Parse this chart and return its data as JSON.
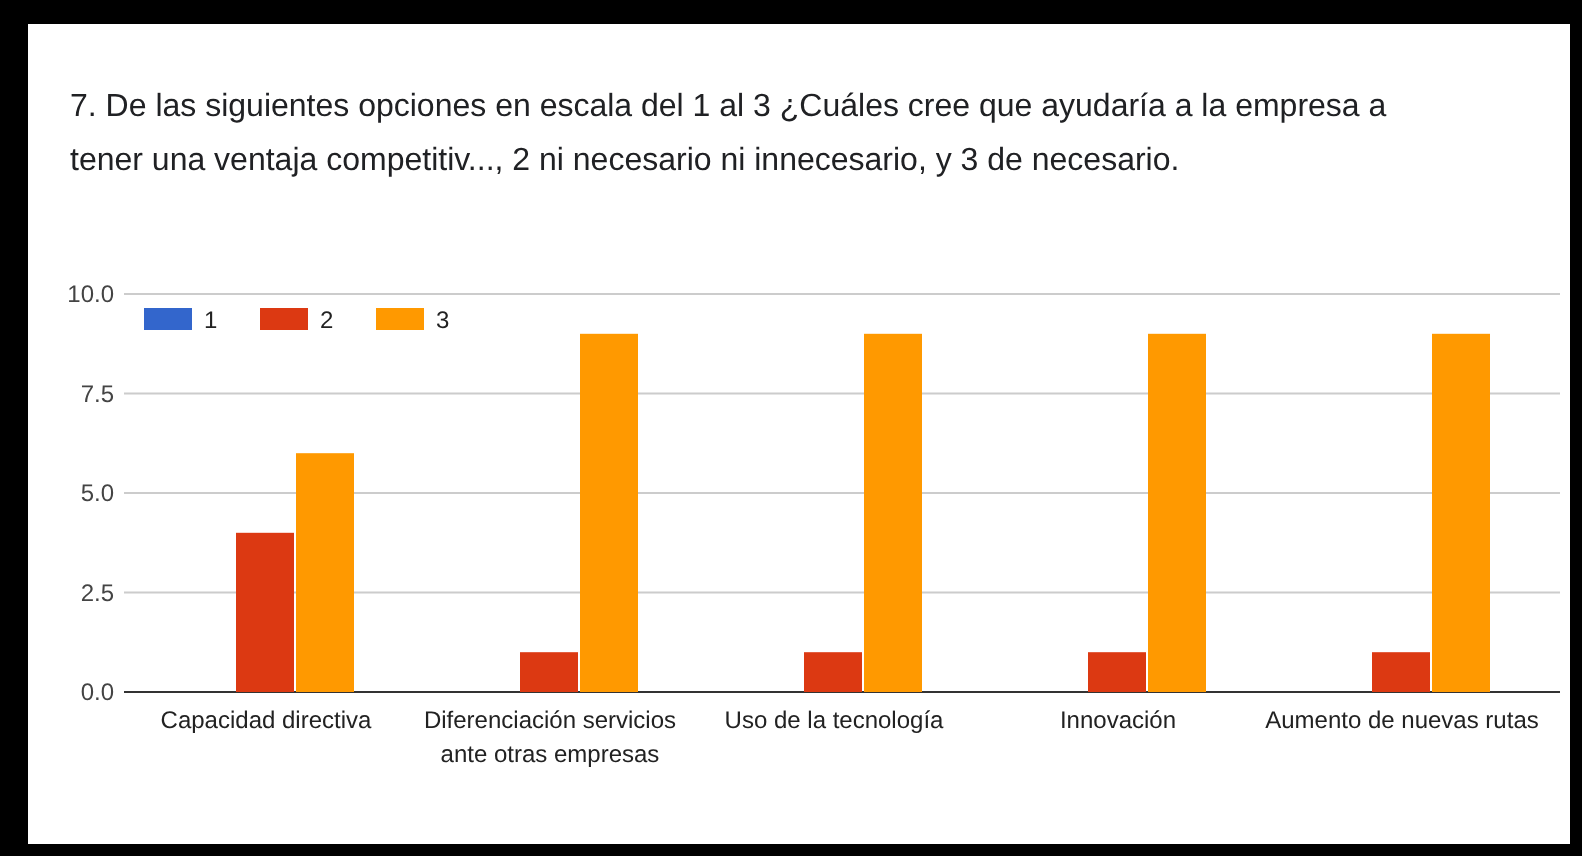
{
  "chart_data": {
    "type": "bar",
    "title": "7. De las siguientes opciones en escala del 1 al 3 ¿Cuáles cree que ayudaría a la empresa a tener una ventaja competitiv..., 2 ni necesario ni innecesario, y 3 de necesario.",
    "categories": [
      "Capacidad directiva",
      "Diferenciación servicios ante otras empresas",
      "Uso de la tecnología",
      "Innovación",
      "Aumento de nuevas rutas"
    ],
    "series": [
      {
        "name": "1",
        "color": "#3366cc",
        "values": [
          0,
          0,
          0,
          0,
          0
        ]
      },
      {
        "name": "2",
        "color": "#dc3912",
        "values": [
          4,
          1,
          1,
          1,
          1
        ]
      },
      {
        "name": "3",
        "color": "#ff9900",
        "values": [
          6,
          9,
          9,
          9,
          9
        ]
      }
    ],
    "ylim": [
      0,
      10
    ],
    "yticks": [
      {
        "value": 0,
        "label": "0.0"
      },
      {
        "value": 2.5,
        "label": "2.5"
      },
      {
        "value": 5,
        "label": "5.0"
      },
      {
        "value": 7.5,
        "label": "7.5"
      },
      {
        "value": 10,
        "label": "10.0"
      }
    ],
    "grid": "y",
    "legend": "top left"
  }
}
